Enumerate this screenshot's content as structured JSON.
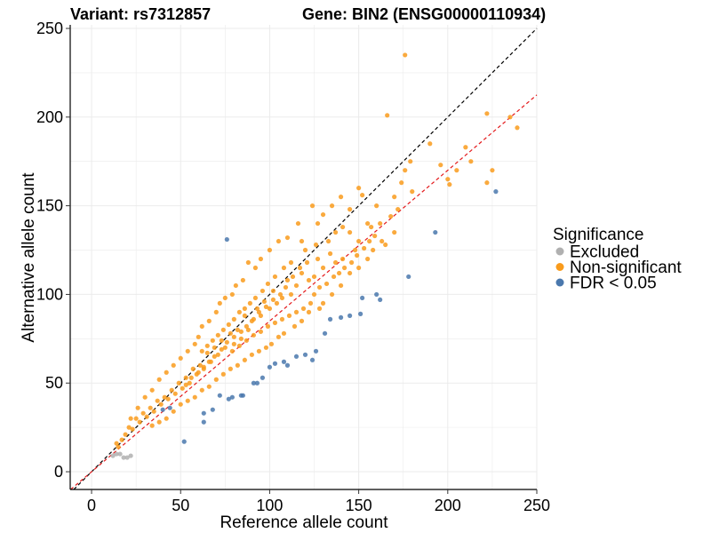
{
  "title_left": "Variant: rs7312857",
  "title_right": "Gene: BIN2 (ENSG00000110934)",
  "colors": {
    "excluded": "#b0b0b0",
    "non_significant": "#f99b1c",
    "fdr": "#4a78ad",
    "identity_line": "#000000",
    "fit_line": "#e41a1c",
    "grid": "#ebebeb"
  },
  "chart_data": {
    "type": "scatter",
    "title": "Variant: rs7312857    Gene: BIN2 (ENSG00000110934)",
    "xlabel": "Reference allele count",
    "ylabel": "Alternative allele count",
    "xlim": [
      -12,
      250
    ],
    "ylim": [
      -10,
      252
    ],
    "xticks": [
      0,
      50,
      100,
      150,
      200,
      250
    ],
    "yticks": [
      0,
      50,
      100,
      150,
      200,
      250
    ],
    "grid": true,
    "legend": {
      "title": "Significance",
      "position": "right",
      "entries": [
        "Excluded",
        "Non-significant",
        "FDR < 0.05"
      ]
    },
    "reference_lines": [
      {
        "name": "identity",
        "slope": 1.0,
        "intercept": 0,
        "style": "dashed",
        "color": "#000000"
      },
      {
        "name": "fit",
        "slope": 0.85,
        "intercept": 0,
        "style": "dashed",
        "color": "#e41a1c"
      }
    ],
    "series": [
      {
        "name": "Excluded",
        "color": "#b0b0b0",
        "points": [
          [
            12,
            9
          ],
          [
            14,
            10
          ],
          [
            18,
            8
          ],
          [
            20,
            8
          ],
          [
            22,
            9
          ],
          [
            16,
            10
          ]
        ]
      },
      {
        "name": "FDR < 0.05",
        "color": "#4a78ad",
        "points": [
          [
            76,
            131
          ],
          [
            193,
            135
          ],
          [
            227,
            158
          ],
          [
            178,
            110
          ],
          [
            152,
            98
          ],
          [
            160,
            100
          ],
          [
            162,
            97
          ],
          [
            151,
            89
          ],
          [
            131,
            78
          ],
          [
            134,
            86
          ],
          [
            140,
            87
          ],
          [
            145,
            88
          ],
          [
            124,
            63
          ],
          [
            126,
            68
          ],
          [
            120,
            66
          ],
          [
            115,
            65
          ],
          [
            110,
            60
          ],
          [
            108,
            62
          ],
          [
            100,
            59
          ],
          [
            103,
            61
          ],
          [
            96,
            53
          ],
          [
            91,
            50
          ],
          [
            93,
            50
          ],
          [
            85,
            43
          ],
          [
            84,
            43
          ],
          [
            79,
            42
          ],
          [
            77,
            41
          ],
          [
            72,
            43
          ],
          [
            68,
            35
          ],
          [
            63,
            33
          ],
          [
            63,
            28
          ],
          [
            52,
            17
          ],
          [
            40,
            35
          ],
          [
            44,
            36
          ]
        ]
      },
      {
        "name": "Non-significant",
        "color": "#f99b1c",
        "points": [
          [
            176,
            235
          ],
          [
            166,
            201
          ],
          [
            222,
            202
          ],
          [
            235,
            200
          ],
          [
            239,
            194
          ],
          [
            190,
            185
          ],
          [
            179,
            175
          ],
          [
            176,
            170
          ],
          [
            210,
            183
          ],
          [
            213,
            175
          ],
          [
            222,
            163
          ],
          [
            225,
            170
          ],
          [
            205,
            170
          ],
          [
            201,
            162
          ],
          [
            196,
            173
          ],
          [
            200,
            165
          ],
          [
            174,
            163
          ],
          [
            170,
            155
          ],
          [
            180,
            158
          ],
          [
            172,
            148
          ],
          [
            168,
            144
          ],
          [
            162,
            140
          ],
          [
            160,
            150
          ],
          [
            155,
            140
          ],
          [
            150,
            130
          ],
          [
            145,
            135
          ],
          [
            148,
            125
          ],
          [
            141,
            120
          ],
          [
            137,
            118
          ],
          [
            134,
            123
          ],
          [
            130,
            115
          ],
          [
            127,
            120
          ],
          [
            125,
            110
          ],
          [
            122,
            108
          ],
          [
            118,
            112
          ],
          [
            115,
            105
          ],
          [
            112,
            100
          ],
          [
            110,
            108
          ],
          [
            107,
            98
          ],
          [
            104,
            95
          ],
          [
            102,
            102
          ],
          [
            100,
            92
          ],
          [
            97,
            96
          ],
          [
            95,
            88
          ],
          [
            93,
            92
          ],
          [
            90,
            85
          ],
          [
            88,
            80
          ],
          [
            86,
            88
          ],
          [
            84,
            75
          ],
          [
            82,
            80
          ],
          [
            80,
            72
          ],
          [
            78,
            78
          ],
          [
            75,
            70
          ],
          [
            73,
            74
          ],
          [
            71,
            66
          ],
          [
            69,
            70
          ],
          [
            67,
            62
          ],
          [
            65,
            67
          ],
          [
            63,
            58
          ],
          [
            61,
            60
          ],
          [
            59,
            55
          ],
          [
            57,
            58
          ],
          [
            55,
            50
          ],
          [
            53,
            53
          ],
          [
            51,
            47
          ],
          [
            49,
            50
          ],
          [
            47,
            44
          ],
          [
            45,
            46
          ],
          [
            43,
            41
          ],
          [
            41,
            42
          ],
          [
            39,
            38
          ],
          [
            37,
            40
          ],
          [
            35,
            34
          ],
          [
            33,
            36
          ],
          [
            31,
            31
          ],
          [
            29,
            33
          ],
          [
            27,
            28
          ],
          [
            25,
            30
          ],
          [
            23,
            24
          ],
          [
            21,
            25
          ],
          [
            19,
            21
          ],
          [
            17,
            18
          ],
          [
            15,
            14
          ],
          [
            14,
            16
          ],
          [
            127,
            140
          ],
          [
            135,
            150
          ],
          [
            130,
            145
          ],
          [
            124,
            150
          ],
          [
            140,
            155
          ],
          [
            150,
            160
          ],
          [
            152,
            156
          ],
          [
            145,
            148
          ],
          [
            116,
            140
          ],
          [
            110,
            132
          ],
          [
            105,
            130
          ],
          [
            100,
            125
          ],
          [
            95,
            120
          ],
          [
            92,
            115
          ],
          [
            88,
            118
          ],
          [
            85,
            108
          ],
          [
            81,
            105
          ],
          [
            79,
            100
          ],
          [
            75,
            98
          ],
          [
            72,
            95
          ],
          [
            70,
            90
          ],
          [
            66,
            85
          ],
          [
            62,
            82
          ],
          [
            60,
            76
          ],
          [
            58,
            72
          ],
          [
            54,
            68
          ],
          [
            50,
            64
          ],
          [
            46,
            60
          ],
          [
            42,
            56
          ],
          [
            38,
            52
          ],
          [
            34,
            46
          ],
          [
            30,
            42
          ],
          [
            26,
            36
          ],
          [
            22,
            30
          ],
          [
            140,
            105
          ],
          [
            145,
            112
          ],
          [
            150,
            115
          ],
          [
            155,
            120
          ],
          [
            158,
            125
          ],
          [
            163,
            130
          ],
          [
            165,
            128
          ],
          [
            170,
            135
          ],
          [
            135,
            100
          ],
          [
            130,
            95
          ],
          [
            128,
            92
          ],
          [
            122,
            90
          ],
          [
            118,
            85
          ],
          [
            114,
            82
          ],
          [
            108,
            78
          ],
          [
            105,
            76
          ],
          [
            101,
            72
          ],
          [
            98,
            70
          ],
          [
            94,
            68
          ],
          [
            90,
            66
          ],
          [
            86,
            63
          ],
          [
            82,
            60
          ],
          [
            78,
            58
          ],
          [
            74,
            55
          ],
          [
            70,
            52
          ],
          [
            66,
            48
          ],
          [
            62,
            46
          ],
          [
            58,
            42
          ],
          [
            54,
            40
          ],
          [
            50,
            38
          ],
          [
            46,
            34
          ],
          [
            42,
            30
          ],
          [
            38,
            28
          ],
          [
            34,
            26
          ],
          [
            120,
            125
          ],
          [
            118,
            130
          ],
          [
            112,
            118
          ],
          [
            108,
            115
          ],
          [
            103,
            110
          ],
          [
            99,
            106
          ],
          [
            96,
            102
          ],
          [
            92,
            98
          ],
          [
            89,
            95
          ],
          [
            86,
            92
          ],
          [
            83,
            90
          ],
          [
            80,
            86
          ],
          [
            77,
            83
          ],
          [
            74,
            80
          ],
          [
            71,
            77
          ],
          [
            68,
            74
          ],
          [
            65,
            71
          ],
          [
            62,
            68
          ],
          [
            125,
            100
          ],
          [
            128,
            104
          ],
          [
            132,
            106
          ],
          [
            136,
            110
          ],
          [
            139,
            112
          ],
          [
            142,
            115
          ],
          [
            146,
            118
          ],
          [
            149,
            122
          ],
          [
            153,
            126
          ],
          [
            156,
            130
          ],
          [
            159,
            133
          ],
          [
            157,
            138
          ],
          [
            133,
            130
          ],
          [
            137,
            135
          ],
          [
            141,
            138
          ],
          [
            126,
            128
          ],
          [
            121,
            118
          ],
          [
            117,
            115
          ],
          [
            113,
            110
          ],
          [
            109,
            104
          ],
          [
            106,
            100
          ],
          [
            102,
            97
          ],
          [
            98,
            93
          ],
          [
            94,
            90
          ],
          [
            91,
            86
          ],
          [
            87,
            82
          ],
          [
            84,
            79
          ],
          [
            80,
            76
          ],
          [
            76,
            73
          ],
          [
            73,
            69
          ],
          [
            69,
            65
          ],
          [
            66,
            62
          ],
          [
            63,
            59
          ],
          [
            60,
            56
          ],
          [
            56,
            53
          ],
          [
            53,
            49
          ],
          [
            123,
            95
          ],
          [
            119,
            92
          ],
          [
            115,
            90
          ],
          [
            111,
            88
          ],
          [
            107,
            86
          ],
          [
            103,
            84
          ],
          [
            99,
            82
          ],
          [
            95,
            79
          ],
          [
            91,
            77
          ],
          [
            87,
            74
          ],
          [
            83,
            71
          ],
          [
            79,
            68
          ]
        ]
      }
    ]
  }
}
